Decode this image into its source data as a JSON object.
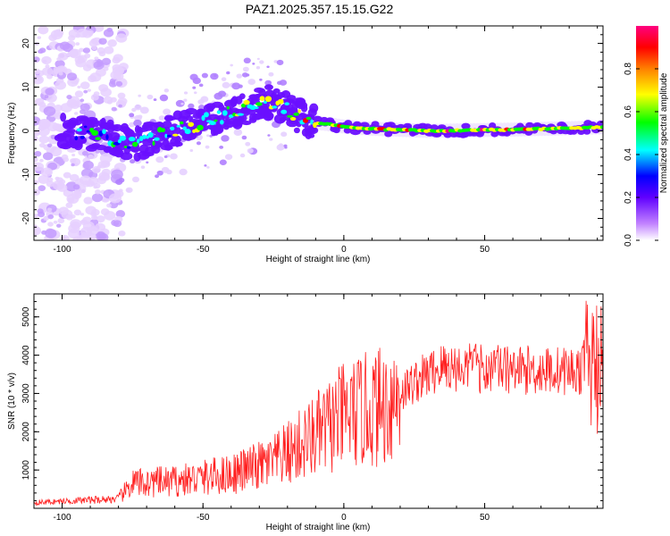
{
  "title": "PAZ1.2025.357.15.15.G22",
  "chart_data": [
    {
      "type": "heatmap",
      "title": "",
      "xlabel": "Height of straight line (km)",
      "ylabel": "Frequency (Hz)",
      "xlim": [
        -110,
        92
      ],
      "ylim": [
        -25,
        24
      ],
      "x_ticks": [
        -100,
        -50,
        0,
        50
      ],
      "y_ticks": [
        -20,
        -10,
        0,
        10,
        20
      ],
      "colorbar": {
        "label": "Normalized spectral amplitude",
        "range": [
          0.0,
          1.0
        ],
        "ticks": [
          0.0,
          0.2,
          0.4,
          0.6,
          0.8
        ],
        "colors": [
          "#ffffff",
          "#9b30ff",
          "#0000ff",
          "#00ffff",
          "#00ff00",
          "#ffff00",
          "#ff8000",
          "#ff0000",
          "#ff0080"
        ]
      },
      "ridge_freq": [
        {
          "x": -100,
          "f": 0
        },
        {
          "x": -85,
          "f": -1
        },
        {
          "x": -75,
          "f": -3
        },
        {
          "x": -65,
          "f": -1
        },
        {
          "x": -55,
          "f": 1
        },
        {
          "x": -45,
          "f": 3
        },
        {
          "x": -35,
          "f": 5
        },
        {
          "x": -28,
          "f": 7
        },
        {
          "x": -20,
          "f": 5
        },
        {
          "x": -12,
          "f": 2
        },
        {
          "x": -5,
          "f": 1.5
        },
        {
          "x": 0,
          "f": 1
        },
        {
          "x": 10,
          "f": 0.5
        },
        {
          "x": 30,
          "f": 0
        },
        {
          "x": 60,
          "f": 0.3
        },
        {
          "x": 90,
          "f": 0.8
        }
      ]
    },
    {
      "type": "line",
      "title": "",
      "xlabel": "Height of straight line (km)",
      "ylabel": "SNR (10 * v/v)",
      "xlim": [
        -110,
        92
      ],
      "ylim": [
        0,
        5600
      ],
      "x_ticks": [
        -100,
        -50,
        0,
        50
      ],
      "y_ticks": [
        1000,
        2000,
        3000,
        4000,
        5000
      ],
      "color": "#ff0000",
      "trend": [
        {
          "x": -110,
          "y": 150
        },
        {
          "x": -80,
          "y": 250
        },
        {
          "x": -75,
          "y": 650
        },
        {
          "x": -60,
          "y": 700
        },
        {
          "x": -40,
          "y": 900
        },
        {
          "x": -25,
          "y": 1200
        },
        {
          "x": -12,
          "y": 1800
        },
        {
          "x": 0,
          "y": 2400
        },
        {
          "x": 15,
          "y": 2700
        },
        {
          "x": 25,
          "y": 3300
        },
        {
          "x": 35,
          "y": 3700
        },
        {
          "x": 50,
          "y": 3650
        },
        {
          "x": 70,
          "y": 3600
        },
        {
          "x": 90,
          "y": 3600
        }
      ]
    }
  ]
}
